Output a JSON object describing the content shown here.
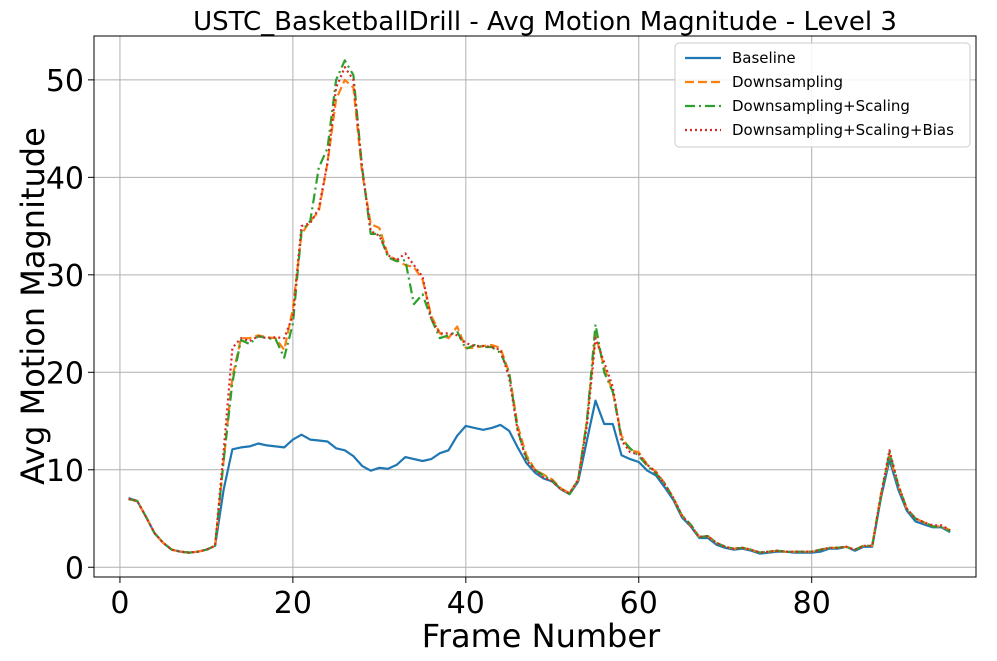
{
  "chart_data": {
    "type": "line",
    "title": "USTC_BasketballDrill - Avg Motion Magnitude - Level 3",
    "xlabel": "Frame Number",
    "ylabel": "Avg Motion Magnitude",
    "xlim": [
      -3,
      99
    ],
    "ylim": [
      -1,
      54.5
    ],
    "xticks": [
      0,
      20,
      40,
      60,
      80
    ],
    "yticks": [
      0,
      10,
      20,
      30,
      40,
      50
    ],
    "grid": true,
    "legend_position": "top-right",
    "x_start": 1,
    "series": [
      {
        "name": "Baseline",
        "color": "#1f77b4",
        "dash": "solid",
        "values": [
          7.1,
          6.8,
          5.2,
          3.5,
          2.5,
          1.8,
          1.6,
          1.5,
          1.6,
          1.8,
          2.2,
          8.0,
          12.1,
          12.3,
          12.4,
          12.7,
          12.5,
          12.4,
          12.3,
          13.1,
          13.6,
          13.1,
          13.0,
          12.9,
          12.2,
          12.0,
          11.4,
          10.4,
          9.9,
          10.2,
          10.1,
          10.5,
          11.3,
          11.1,
          10.9,
          11.1,
          11.7,
          12.0,
          13.5,
          14.5,
          14.3,
          14.1,
          14.3,
          14.6,
          14.0,
          12.3,
          10.7,
          9.7,
          9.1,
          8.8,
          8.0,
          7.5,
          8.8,
          13.0,
          17.1,
          14.7,
          14.7,
          11.5,
          11.1,
          10.8,
          9.9,
          9.4,
          8.2,
          6.9,
          5.1,
          4.2,
          3.0,
          3.0,
          2.3,
          2.0,
          1.8,
          1.9,
          1.7,
          1.4,
          1.5,
          1.6,
          1.6,
          1.5,
          1.5,
          1.5,
          1.6,
          1.9,
          1.9,
          2.1,
          1.7,
          2.1,
          2.1,
          7.1,
          11.0,
          8.0,
          5.8,
          4.7,
          4.4,
          4.1,
          4.1,
          3.6
        ]
      },
      {
        "name": "Downsampling",
        "color": "#ff7f0e",
        "dash": "dashed",
        "values": [
          7.0,
          6.8,
          5.2,
          3.5,
          2.5,
          1.8,
          1.6,
          1.5,
          1.6,
          1.8,
          2.2,
          11.0,
          19.5,
          23.5,
          23.5,
          23.8,
          23.6,
          23.5,
          22.3,
          26.5,
          34.2,
          35.5,
          36.5,
          41.5,
          48.0,
          50.0,
          49.2,
          40.5,
          35.2,
          34.8,
          32.0,
          31.5,
          31.0,
          30.8,
          29.5,
          25.8,
          24.0,
          23.5,
          24.7,
          22.5,
          22.5,
          22.7,
          22.8,
          22.5,
          20.0,
          14.5,
          11.5,
          10.0,
          9.5,
          9.0,
          8.1,
          7.6,
          9.0,
          15.0,
          23.9,
          20.5,
          18.0,
          13.5,
          12.0,
          11.8,
          10.5,
          9.8,
          8.6,
          7.1,
          5.3,
          4.3,
          3.1,
          3.2,
          2.5,
          2.1,
          1.9,
          2.0,
          1.8,
          1.5,
          1.6,
          1.7,
          1.6,
          1.6,
          1.6,
          1.6,
          1.8,
          2.0,
          2.0,
          2.1,
          1.8,
          2.2,
          2.2,
          7.5,
          11.5,
          8.4,
          6.0,
          5.0,
          4.6,
          4.2,
          4.2,
          3.8
        ]
      },
      {
        "name": "Downsampling+Scaling",
        "color": "#2ca02c",
        "dash": "dashdot",
        "values": [
          7.0,
          6.8,
          5.2,
          3.5,
          2.5,
          1.8,
          1.6,
          1.5,
          1.6,
          1.8,
          2.2,
          11.0,
          19.0,
          23.3,
          22.9,
          23.7,
          23.5,
          23.4,
          21.5,
          25.0,
          34.5,
          35.5,
          41.0,
          43.0,
          50.0,
          52.0,
          50.5,
          41.0,
          34.2,
          34.2,
          31.8,
          31.4,
          31.5,
          27.0,
          28.0,
          25.5,
          23.5,
          23.8,
          24.2,
          22.4,
          22.8,
          22.6,
          22.6,
          22.0,
          20.0,
          14.0,
          11.2,
          10.0,
          9.4,
          8.9,
          8.0,
          7.5,
          9.0,
          15.0,
          24.9,
          20.0,
          18.0,
          13.2,
          12.2,
          11.4,
          10.4,
          9.6,
          8.6,
          7.0,
          5.3,
          4.4,
          3.1,
          3.2,
          2.5,
          2.1,
          1.9,
          2.0,
          1.8,
          1.5,
          1.6,
          1.7,
          1.6,
          1.6,
          1.6,
          1.6,
          1.8,
          2.0,
          2.0,
          2.1,
          1.8,
          2.2,
          2.2,
          7.2,
          11.8,
          8.4,
          6.0,
          5.0,
          4.6,
          4.2,
          4.1,
          3.7
        ]
      },
      {
        "name": "Downsampling+Scaling+Bias",
        "color": "#d62728",
        "dash": "dotted",
        "values": [
          7.0,
          6.8,
          5.2,
          3.5,
          2.5,
          1.8,
          1.6,
          1.5,
          1.6,
          1.8,
          2.2,
          12.0,
          22.5,
          23.5,
          23.2,
          23.7,
          23.5,
          23.6,
          23.5,
          25.8,
          35.0,
          35.3,
          36.8,
          41.5,
          49.2,
          51.3,
          50.0,
          41.0,
          34.5,
          34.0,
          32.0,
          31.5,
          32.2,
          31.0,
          29.8,
          25.5,
          24.0,
          24.0,
          23.8,
          23.0,
          22.7,
          22.7,
          22.6,
          22.3,
          19.5,
          14.0,
          11.0,
          10.0,
          9.2,
          8.8,
          8.0,
          7.6,
          9.0,
          14.5,
          23.5,
          21.0,
          18.5,
          13.0,
          11.8,
          11.6,
          10.5,
          9.7,
          8.5,
          7.1,
          5.3,
          4.3,
          3.1,
          3.2,
          2.5,
          2.1,
          1.9,
          2.0,
          1.8,
          1.5,
          1.6,
          1.7,
          1.6,
          1.6,
          1.6,
          1.6,
          1.8,
          2.0,
          2.0,
          2.1,
          1.8,
          2.2,
          2.2,
          7.4,
          12.0,
          8.5,
          6.0,
          5.0,
          4.6,
          4.3,
          4.3,
          3.8
        ]
      }
    ]
  }
}
